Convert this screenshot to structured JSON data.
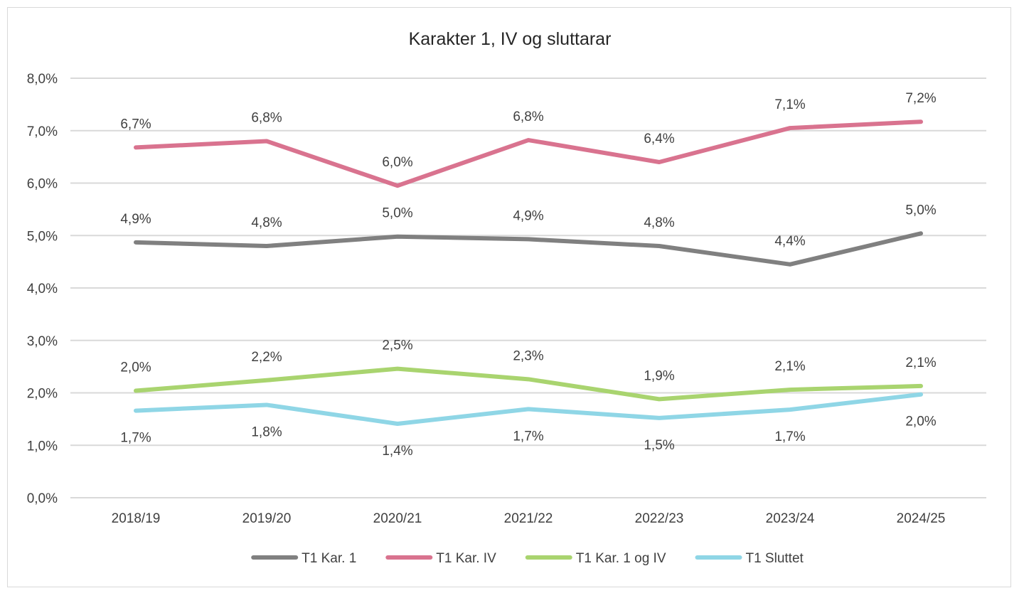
{
  "chart_data": {
    "type": "line",
    "title": "Karakter 1, IV og sluttarar",
    "categories": [
      "2018/19",
      "2019/20",
      "2020/21",
      "2021/22",
      "2022/23",
      "2023/24",
      "2024/25"
    ],
    "ylim": [
      0,
      8
    ],
    "yticks": [
      "0,0%",
      "1,0%",
      "2,0%",
      "3,0%",
      "4,0%",
      "5,0%",
      "6,0%",
      "7,0%",
      "8,0%"
    ],
    "grid": true,
    "legend_position": "bottom",
    "series": [
      {
        "name": "T1 Kar. 1",
        "color": "#808080",
        "values": [
          4.87,
          4.8,
          4.98,
          4.93,
          4.8,
          4.45,
          5.04
        ],
        "labels": [
          "4,9%",
          "4,8%",
          "5,0%",
          "4,9%",
          "4,8%",
          "4,4%",
          "5,0%"
        ],
        "label_position": [
          "above",
          "above",
          "above",
          "above",
          "above",
          "above",
          "above"
        ]
      },
      {
        "name": "T1 Kar. IV",
        "color": "#d9738f",
        "values": [
          6.68,
          6.8,
          5.95,
          6.82,
          6.4,
          7.05,
          7.17
        ],
        "labels": [
          "6,7%",
          "6,8%",
          "6,0%",
          "6,8%",
          "6,4%",
          "7,1%",
          "7,2%"
        ],
        "label_position": [
          "above",
          "above",
          "above",
          "above",
          "above",
          "above",
          "above"
        ]
      },
      {
        "name": "T1 Kar. 1 og IV",
        "color": "#a9d46f",
        "values": [
          2.04,
          2.24,
          2.46,
          2.26,
          1.88,
          2.06,
          2.13
        ],
        "labels": [
          "2,0%",
          "2,2%",
          "2,5%",
          "2,3%",
          "1,9%",
          "2,1%",
          "2,1%"
        ],
        "label_position": [
          "above",
          "above",
          "above",
          "above",
          "above",
          "above",
          "above"
        ]
      },
      {
        "name": "T1 Sluttet",
        "color": "#8fd6e6",
        "values": [
          1.66,
          1.77,
          1.41,
          1.69,
          1.52,
          1.68,
          1.97
        ],
        "labels": [
          "1,7%",
          "1,8%",
          "1,4%",
          "1,7%",
          "1,5%",
          "1,7%",
          "2,0%"
        ],
        "label_position": [
          "below",
          "below",
          "below",
          "below",
          "below",
          "below",
          "below"
        ]
      }
    ]
  }
}
